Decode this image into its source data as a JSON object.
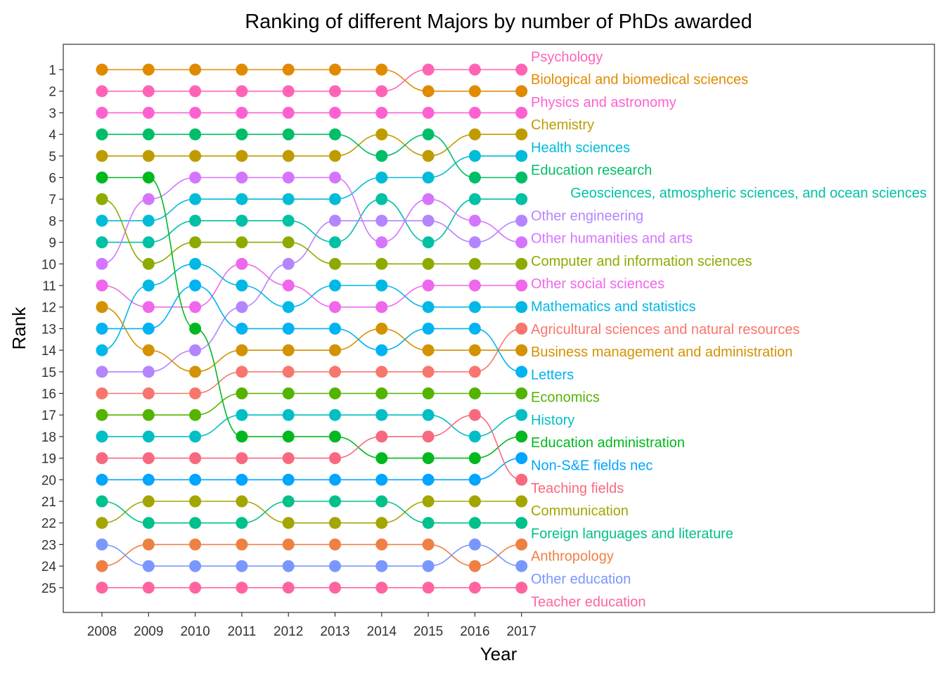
{
  "chart_data": {
    "type": "line",
    "subtype": "bump",
    "title": "Ranking of different Majors by number of PhDs awarded",
    "xlabel": "Year",
    "ylabel": "Rank",
    "x": [
      2008,
      2009,
      2010,
      2011,
      2012,
      2013,
      2014,
      2015,
      2016,
      2017
    ],
    "yticks": [
      1,
      2,
      3,
      4,
      5,
      6,
      7,
      8,
      9,
      10,
      11,
      12,
      13,
      14,
      15,
      16,
      17,
      18,
      19,
      20,
      21,
      22,
      23,
      24,
      25
    ],
    "ylim": [
      0,
      26
    ],
    "y_reversed": true,
    "grid": false,
    "legend": "direct labels at right",
    "series": [
      {
        "name": "Psychology",
        "color": "#FF63B6",
        "values": [
          2,
          2,
          2,
          2,
          2,
          2,
          2,
          1,
          1,
          1
        ]
      },
      {
        "name": "Biological and biomedical sciences",
        "color": "#E18A00",
        "values": [
          1,
          1,
          1,
          1,
          1,
          1,
          1,
          2,
          2,
          2
        ]
      },
      {
        "name": "Physics and astronomy",
        "color": "#FD61D1",
        "values": [
          3,
          3,
          3,
          3,
          3,
          3,
          3,
          3,
          3,
          3
        ]
      },
      {
        "name": "Chemistry",
        "color": "#BE9C00",
        "values": [
          5,
          5,
          5,
          5,
          5,
          5,
          4,
          5,
          4,
          4
        ]
      },
      {
        "name": "Health sciences",
        "color": "#00BCD8",
        "values": [
          8,
          8,
          7,
          7,
          7,
          7,
          6,
          6,
          5,
          5
        ]
      },
      {
        "name": "Education research",
        "color": "#00BE67",
        "values": [
          4,
          4,
          4,
          4,
          4,
          4,
          5,
          4,
          6,
          6
        ]
      },
      {
        "name": "Geosciences, atmospheric sciences, and ocean sciences",
        "color": "#00C1A3",
        "values": [
          9,
          9,
          8,
          8,
          8,
          9,
          7,
          9,
          7,
          7
        ]
      },
      {
        "name": "Other engineering",
        "color": "#B385FF",
        "values": [
          15,
          15,
          14,
          12,
          10,
          8,
          8,
          8,
          9,
          8
        ]
      },
      {
        "name": "Other humanities and arts",
        "color": "#D575FE",
        "values": [
          10,
          7,
          6,
          6,
          6,
          6,
          9,
          7,
          8,
          9
        ]
      },
      {
        "name": "Computer and information sciences",
        "color": "#8CAB00",
        "values": [
          7,
          10,
          9,
          9,
          9,
          10,
          10,
          10,
          10,
          10
        ]
      },
      {
        "name": "Other social sciences",
        "color": "#EF67EB",
        "values": [
          11,
          12,
          12,
          10,
          11,
          12,
          12,
          11,
          11,
          11
        ]
      },
      {
        "name": "Mathematics and statistics",
        "color": "#00B8E5",
        "values": [
          14,
          11,
          10,
          11,
          12,
          11,
          11,
          12,
          12,
          12
        ]
      },
      {
        "name": "Agricultural sciences and natural resources",
        "color": "#F8766D",
        "values": [
          16,
          16,
          16,
          15,
          15,
          15,
          15,
          15,
          15,
          13
        ]
      },
      {
        "name": "Business management and administration",
        "color": "#D39200",
        "values": [
          12,
          14,
          15,
          14,
          14,
          14,
          13,
          14,
          14,
          14
        ]
      },
      {
        "name": "Letters",
        "color": "#00B3F2",
        "values": [
          13,
          13,
          11,
          13,
          13,
          13,
          14,
          13,
          13,
          15
        ]
      },
      {
        "name": "Economics",
        "color": "#53B400",
        "values": [
          17,
          17,
          17,
          16,
          16,
          16,
          16,
          16,
          16,
          16
        ]
      },
      {
        "name": "History",
        "color": "#00BFC4",
        "values": [
          18,
          18,
          18,
          17,
          17,
          17,
          17,
          17,
          18,
          17
        ]
      },
      {
        "name": "Education administration",
        "color": "#00B81F",
        "values": [
          6,
          6,
          13,
          18,
          18,
          18,
          19,
          19,
          19,
          18
        ]
      },
      {
        "name": "Non-S&E fields nec",
        "color": "#00A5FF",
        "values": [
          20,
          20,
          20,
          20,
          20,
          20,
          20,
          20,
          20,
          19
        ]
      },
      {
        "name": "Teaching fields",
        "color": "#F8697F",
        "values": [
          19,
          19,
          19,
          19,
          19,
          19,
          18,
          18,
          17,
          20
        ]
      },
      {
        "name": "Communication",
        "color": "#A3A500",
        "values": [
          22,
          21,
          21,
          21,
          22,
          22,
          22,
          21,
          21,
          21
        ]
      },
      {
        "name": "Foreign languages and literature",
        "color": "#00C08B",
        "values": [
          21,
          22,
          22,
          22,
          21,
          21,
          21,
          22,
          22,
          22
        ]
      },
      {
        "name": "Anthropology",
        "color": "#EE8043",
        "values": [
          24,
          23,
          23,
          23,
          23,
          23,
          23,
          23,
          24,
          23
        ]
      },
      {
        "name": "Other education",
        "color": "#7997FF",
        "values": [
          23,
          24,
          24,
          24,
          24,
          24,
          24,
          24,
          23,
          24
        ]
      },
      {
        "name": "Teacher education",
        "color": "#FF64A0",
        "values": [
          25,
          25,
          25,
          25,
          25,
          25,
          25,
          25,
          25,
          25
        ]
      }
    ]
  }
}
